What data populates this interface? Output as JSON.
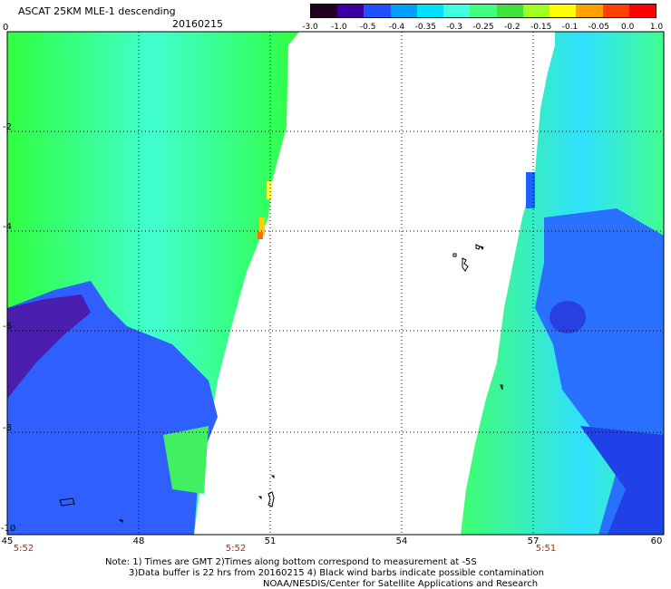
{
  "header": {
    "title": "ASCAT 25KM MLE-1 descending",
    "date": "20160215"
  },
  "colorbar": {
    "labels": [
      "-3.0",
      "-1.0",
      "-0.5",
      "-0.4",
      "-0.35",
      "-0.3",
      "-0.25",
      "-0.2",
      "-0.15",
      "-0.1",
      "-0.05",
      "0.0",
      "1.0"
    ],
    "colors": [
      "#200020",
      "#3c00a0",
      "#2050ff",
      "#00a0ff",
      "#00e0ff",
      "#40ffe0",
      "#40ff80",
      "#40e040",
      "#a0ff20",
      "#ffff00",
      "#ffa000",
      "#ff4000",
      "#ff0000"
    ]
  },
  "map": {
    "y_ticks": [
      "0",
      "-2",
      "-4",
      "-6",
      "-8",
      "-10"
    ],
    "x_ticks": [
      "45",
      "48",
      "51",
      "54",
      "57",
      "60"
    ],
    "times": [
      "5:52",
      "5:52",
      "5:51"
    ]
  },
  "notes": {
    "line1": "Note: 1) Times are GMT 2)Times along bottom correspond to measurement at -5S",
    "line2": "3)Data buffer is 22 hrs from 20160215 4) Black wind barbs indicate possible contamination",
    "line3": "NOAA/NESDIS/Center for Satellite Applications and Research"
  }
}
